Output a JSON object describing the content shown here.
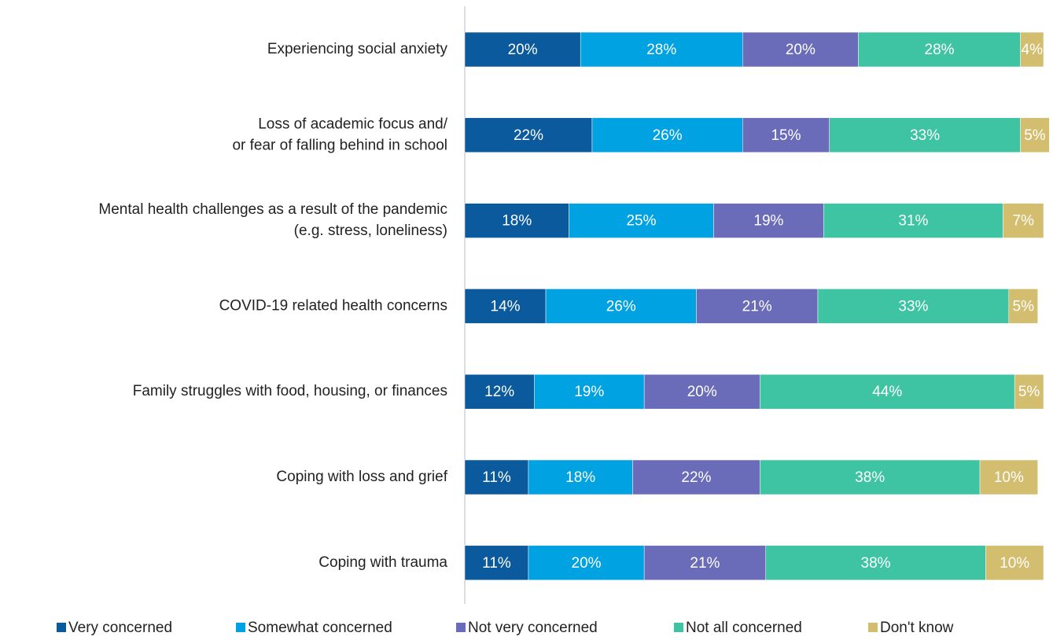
{
  "chart_data": {
    "type": "stacked_bar_horizontal",
    "categories": [
      [
        "Experiencing social anxiety"
      ],
      [
        "Loss of academic focus and/",
        "or fear of falling behind in school"
      ],
      [
        "Mental health challenges as a result of the pandemic",
        "(e.g. stress, loneliness)"
      ],
      [
        "COVID-19 related health concerns"
      ],
      [
        "Family struggles with food, housing, or finances"
      ],
      [
        "Coping with loss and grief"
      ],
      [
        "Coping with trauma"
      ]
    ],
    "xlim": [
      0,
      100
    ],
    "legend": "bottom",
    "series": [
      {
        "name": "Very concerned",
        "color": "#0b5a9e",
        "values": [
          20,
          22,
          18,
          14,
          12,
          11,
          11
        ],
        "value_labels": [
          "20%",
          "22%",
          "18%",
          "14%",
          "12%",
          "11%",
          "11%"
        ]
      },
      {
        "name": "Somewhat concerned",
        "color": "#00a2e1",
        "values": [
          28,
          26,
          25,
          26,
          19,
          18,
          20
        ],
        "value_labels": [
          "28%",
          "26%",
          "25%",
          "26%",
          "19%",
          "18%",
          "20%"
        ]
      },
      {
        "name": "Not very concerned",
        "color": "#6a6bb9",
        "values": [
          20,
          15,
          19,
          21,
          20,
          22,
          21
        ],
        "value_labels": [
          "20%",
          "15%",
          "19%",
          "21%",
          "20%",
          "22%",
          "21%"
        ]
      },
      {
        "name": "Not all concerned",
        "color": "#3ec4a2",
        "values": [
          28,
          33,
          31,
          33,
          44,
          38,
          38
        ],
        "value_labels": [
          "28%",
          "33%",
          "31%",
          "33%",
          "44%",
          "38%",
          "38%"
        ]
      },
      {
        "name": "Don't know",
        "color": "#d3bd6e",
        "values": [
          4,
          5,
          7,
          5,
          5,
          10,
          10
        ],
        "value_labels": [
          "4%",
          "5%",
          "7%",
          "5%",
          "5%",
          "10%",
          "10%"
        ]
      }
    ]
  }
}
